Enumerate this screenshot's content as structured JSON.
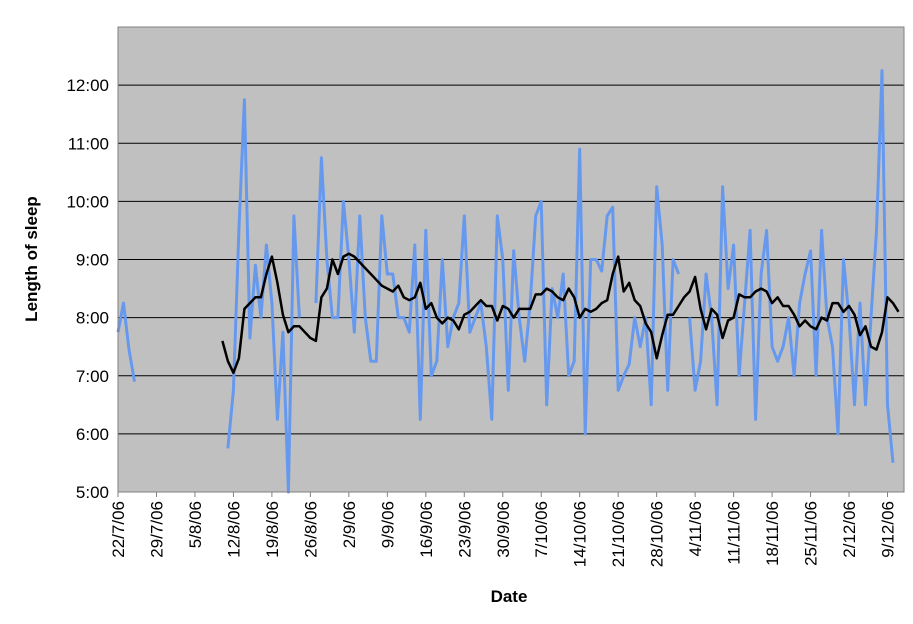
{
  "chart_data": {
    "type": "line",
    "title": "",
    "xlabel": "Date",
    "ylabel": "Length of sleep",
    "x_tick_labels": [
      "22/7/06",
      "29/7/06",
      "5/8/06",
      "12/8/06",
      "19/8/06",
      "26/8/06",
      "2/9/06",
      "9/9/06",
      "16/9/06",
      "23/9/06",
      "30/9/06",
      "7/10/06",
      "14/10/06",
      "21/10/06",
      "28/10/06",
      "4/11/06",
      "11/11/06",
      "18/11/06",
      "25/11/06",
      "2/12/06",
      "9/12/06"
    ],
    "y_tick_labels": [
      "5:00",
      "6:00",
      "7:00",
      "8:00",
      "9:00",
      "10:00",
      "11:00",
      "12:00"
    ],
    "xlim": [
      "22/7/06",
      "12/12/06"
    ],
    "ylim_hours": [
      5,
      13
    ],
    "grid": "horizontal",
    "colors": {
      "plot_background": "#c0c0c0",
      "daily": "#6699ee",
      "average": "#000000",
      "gridline": "#000000"
    },
    "series": [
      {
        "style": "light-blue",
        "x_start": "22/7/06",
        "values_hours": [
          7.75,
          8.25,
          7.45,
          6.9,
          null,
          null,
          null,
          null,
          null,
          null,
          null,
          null,
          null,
          null,
          null,
          null,
          null,
          null,
          null,
          null,
          5.75,
          6.75,
          9.5,
          11.75,
          7.65,
          8.9,
          8.0,
          9.25,
          8.25,
          6.25,
          7.75,
          5.0,
          9.75,
          8.0,
          null,
          null,
          8.25,
          10.75,
          9.0,
          8.0,
          8.0,
          10.0,
          9.0,
          7.75,
          9.75,
          8.0,
          7.25,
          7.25,
          9.75,
          8.75,
          8.75,
          8.0,
          8.0,
          7.75,
          9.25,
          6.25,
          9.5,
          7.0,
          7.25,
          9.0,
          7.5,
          8.0,
          8.25,
          9.75,
          7.75,
          8.0,
          8.25,
          7.5,
          6.25,
          9.75,
          9.0,
          6.75,
          9.15,
          8.0,
          7.25,
          8.25,
          9.75,
          10.0,
          6.5,
          8.5,
          8.0,
          8.75,
          7.0,
          7.25,
          10.9,
          6.0,
          9.0,
          9.0,
          8.8,
          9.75,
          9.9,
          6.75,
          7.0,
          7.2,
          8.0,
          7.5,
          8.0,
          6.5,
          10.25,
          9.25,
          6.75,
          9.0,
          8.75,
          null,
          8.0,
          6.75,
          7.25,
          8.75,
          8.0,
          6.5,
          10.25,
          8.5,
          9.25,
          7.0,
          8.25,
          9.5,
          6.25,
          8.75,
          9.5,
          7.5,
          7.25,
          7.5,
          8.0,
          7.0,
          8.25,
          8.75,
          9.15,
          7.0,
          9.5,
          8.0,
          7.5,
          6.0,
          9.0,
          8.0,
          6.5,
          8.25,
          6.5,
          8.0,
          9.5,
          12.25,
          6.5,
          5.5
        ]
      },
      {
        "style": "black-moving-average",
        "x_start": "22/7/06",
        "values_hours": [
          null,
          null,
          null,
          null,
          null,
          null,
          null,
          null,
          null,
          null,
          null,
          null,
          null,
          null,
          null,
          null,
          null,
          null,
          null,
          7.6,
          7.25,
          7.05,
          7.3,
          8.15,
          8.25,
          8.35,
          8.35,
          8.75,
          9.05,
          8.6,
          8.05,
          7.75,
          7.85,
          7.85,
          7.75,
          7.65,
          7.6,
          8.35,
          8.5,
          9.0,
          8.75,
          9.05,
          9.1,
          9.05,
          8.95,
          8.85,
          8.75,
          8.65,
          8.55,
          8.5,
          8.45,
          8.55,
          8.35,
          8.3,
          8.35,
          8.6,
          8.15,
          8.25,
          8.0,
          7.9,
          8.0,
          7.95,
          7.8,
          8.05,
          8.1,
          8.2,
          8.3,
          8.2,
          8.2,
          7.95,
          8.2,
          8.15,
          8.0,
          8.15,
          8.15,
          8.15,
          8.4,
          8.4,
          8.5,
          8.45,
          8.35,
          8.3,
          8.5,
          8.35,
          8.0,
          8.15,
          8.1,
          8.15,
          8.25,
          8.3,
          8.75,
          9.05,
          8.45,
          8.6,
          8.3,
          8.2,
          7.9,
          7.75,
          7.3,
          7.7,
          8.05,
          8.05,
          8.2,
          8.35,
          8.45,
          8.7,
          8.15,
          7.8,
          8.15,
          8.05,
          7.65,
          7.95,
          8.0,
          8.4,
          8.35,
          8.35,
          8.45,
          8.5,
          8.45,
          8.25,
          8.35,
          8.2,
          8.2,
          8.05,
          7.85,
          7.95,
          7.85,
          7.8,
          8.0,
          7.95,
          8.25,
          8.25,
          8.1,
          8.2,
          8.05,
          7.7,
          7.85,
          7.5,
          7.45,
          7.75,
          8.35,
          8.25,
          8.1
        ]
      }
    ]
  }
}
